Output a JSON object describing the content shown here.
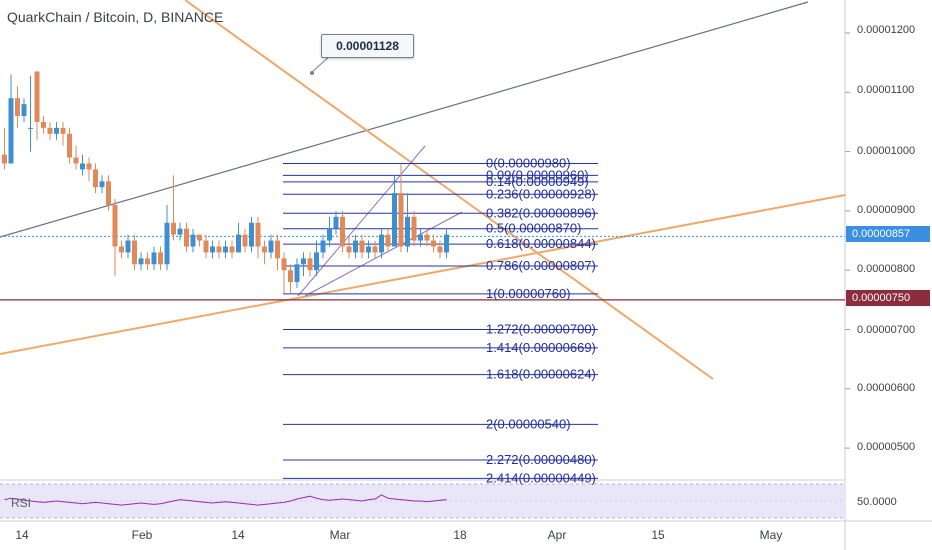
{
  "header": {
    "title": "QuarkChain / Bitcoin, D, BINANCE"
  },
  "callout": {
    "value": "0.00001128"
  },
  "rsi": {
    "label": "RSI",
    "value": "50.0000"
  },
  "colors": {
    "up": "#3c8fd1",
    "down": "#e08a5a",
    "trend": "#6a6f85",
    "orange": "#f0a868",
    "fib": "#2632a8",
    "current_price": "#3a8fe0",
    "support": "#8b2d3c",
    "rsi_line": "#9c27b0",
    "rsi_band": "#e9e6f8"
  },
  "chart_data": {
    "type": "candlestick",
    "title": "QuarkChain / Bitcoin, D, BINANCE",
    "x_ticks": [
      "14",
      "Feb",
      "14",
      "Mar",
      "18",
      "Apr",
      "15",
      "May"
    ],
    "y_ticks": [
      "0.00001200",
      "0.00001100",
      "0.00001000",
      "0.00000900",
      "0.00000800",
      "0.00000700",
      "0.00000600",
      "0.00000500"
    ],
    "current_price": "0.00000857",
    "support_price": "0.00000750",
    "fib_levels": [
      {
        "ratio": "0",
        "price": 9.8e-06,
        "label": "0(0.00000980)"
      },
      {
        "ratio": "0.09",
        "price": 9.6e-06,
        "label": "0.09(0.00000960)"
      },
      {
        "ratio": "0.14",
        "price": 9.49e-06,
        "label": "0.14(0.00000949)"
      },
      {
        "ratio": "0.236",
        "price": 9.28e-06,
        "label": "0.236(0.00000928)"
      },
      {
        "ratio": "0.382",
        "price": 8.96e-06,
        "label": "0.382(0.00000896)"
      },
      {
        "ratio": "0.5",
        "price": 8.7e-06,
        "label": "0.5(0.00000870)"
      },
      {
        "ratio": "0.618",
        "price": 8.44e-06,
        "label": "0.618(0.00000844)"
      },
      {
        "ratio": "0.786",
        "price": 8.07e-06,
        "label": "0.786(0.00000807)"
      },
      {
        "ratio": "1",
        "price": 7.6e-06,
        "label": "1(0.00000760)"
      },
      {
        "ratio": "1.272",
        "price": 7e-06,
        "label": "1.272(0.00000700)"
      },
      {
        "ratio": "1.414",
        "price": 6.69e-06,
        "label": "1.414(0.00000669)"
      },
      {
        "ratio": "1.618",
        "price": 6.24e-06,
        "label": "1.618(0.00000624)"
      },
      {
        "ratio": "2",
        "price": 5.4e-06,
        "label": "2(0.00000540)"
      },
      {
        "ratio": "2.272",
        "price": 4.8e-06,
        "label": "2.272(0.00000480)"
      },
      {
        "ratio": "2.414",
        "price": 4.49e-06,
        "label": "2.414(0.00000449)"
      }
    ],
    "candles": [
      [
        9.95e-06,
        9.8e-06,
        1.04e-05,
        9.7e-06
      ],
      [
        9.8e-06,
        1.09e-05,
        1.13e-05,
        9.8e-06
      ],
      [
        1.09e-05,
        1.06e-05,
        1.11e-05,
        1.04e-05
      ],
      [
        1.06e-05,
        1.08e-05,
        1.09e-05,
        1.05e-05
      ],
      [
        1.04e-05,
        1.04e-05,
        1.128e-05,
        1e-05
      ],
      [
        1.135e-05,
        1.05e-05,
        1.136e-05,
        1.02e-05
      ],
      [
        1.05e-05,
        1.04e-05,
        1.06e-05,
        1.03e-05
      ],
      [
        1.04e-05,
        1.03e-05,
        1.05e-05,
        1.02e-05
      ],
      [
        1.03e-05,
        1.04e-05,
        1.05e-05,
        1.02e-05
      ],
      [
        1.04e-05,
        1.03e-05,
        1.05e-05,
        1.01e-05
      ],
      [
        1.03e-05,
        9.9e-06,
        1.04e-05,
        9.8e-06
      ],
      [
        9.9e-06,
        9.8e-06,
        1.01e-05,
        9.7e-06
      ],
      [
        9.7e-06,
        9.8e-06,
        9.95e-06,
        9.6e-06
      ],
      [
        9.8e-06,
        9.7e-06,
        9.9e-06,
        9.5e-06
      ],
      [
        9.7e-06,
        9.4e-06,
        9.8e-06,
        9.3e-06
      ],
      [
        9.4e-06,
        9.5e-06,
        9.6e-06,
        9.3e-06
      ],
      [
        9.5e-06,
        9.1e-06,
        9.6e-06,
        9e-06
      ],
      [
        9.1e-06,
        8.4e-06,
        9.2e-06,
        7.9e-06
      ],
      [
        8.4e-06,
        8.3e-06,
        8.5e-06,
        8.2e-06
      ],
      [
        8.3e-06,
        8.5e-06,
        8.6e-06,
        8.2e-06
      ],
      [
        8.5e-06,
        8.1e-06,
        8.6e-06,
        8e-06
      ],
      [
        8.1e-06,
        8.2e-06,
        8.3e-06,
        8e-06
      ],
      [
        8.2e-06,
        8.1e-06,
        8.3e-06,
        8e-06
      ],
      [
        8.1e-06,
        8.3e-06,
        8.4e-06,
        8e-06
      ],
      [
        8.3e-06,
        8.1e-06,
        8.4e-06,
        8e-06
      ],
      [
        8.1e-06,
        8.8e-06,
        9.1e-06,
        8e-06
      ],
      [
        8.8e-06,
        8.6e-06,
        9.6e-06,
        8.5e-06
      ],
      [
        8.6e-06,
        8.7e-06,
        8.8e-06,
        8.5e-06
      ],
      [
        8.7e-06,
        8.4e-06,
        8.8e-06,
        8.3e-06
      ],
      [
        8.4e-06,
        8.6e-06,
        8.7e-06,
        8.3e-06
      ],
      [
        8.6e-06,
        8.5e-06,
        8.6e-06,
        8.4e-06
      ],
      [
        8.5e-06,
        8.3e-06,
        8.6e-06,
        8.2e-06
      ],
      [
        8.3e-06,
        8.4e-06,
        8.5e-06,
        8.2e-06
      ],
      [
        8.4e-06,
        8.3e-06,
        8.5e-06,
        8.2e-06
      ],
      [
        8.3e-06,
        8.4e-06,
        8.5e-06,
        8.2e-06
      ],
      [
        8.4e-06,
        8.3e-06,
        8.5e-06,
        8.2e-06
      ],
      [
        8.3e-06,
        8.6e-06,
        8.8e-06,
        8.3e-06
      ],
      [
        8.6e-06,
        8.4e-06,
        8.7e-06,
        8.3e-06
      ],
      [
        8.4e-06,
        8.8e-06,
        8.9e-06,
        8.3e-06
      ],
      [
        8.8e-06,
        8.4e-06,
        8.9e-06,
        8.2e-06
      ],
      [
        8.4e-06,
        8.3e-06,
        8.5e-06,
        8.1e-06
      ],
      [
        8.3e-06,
        8.5e-06,
        8.6e-06,
        8.2e-06
      ],
      [
        8.5e-06,
        8.2e-06,
        8.6e-06,
        8e-06
      ],
      [
        8.2e-06,
        8e-06,
        8.3e-06,
        7.6e-06
      ],
      [
        8e-06,
        7.8e-06,
        8.1e-06,
        7.6e-06
      ],
      [
        7.8e-06,
        8.1e-06,
        8.2e-06,
        7.7e-06
      ],
      [
        8.1e-06,
        8.2e-06,
        8.3e-06,
        7.9e-06
      ],
      [
        8.2e-06,
        8e-06,
        8.3e-06,
        7.9e-06
      ],
      [
        8e-06,
        8.3e-06,
        8.5e-06,
        7.9e-06
      ],
      [
        8.3e-06,
        8.5e-06,
        8.6e-06,
        8.2e-06
      ],
      [
        8.5e-06,
        8.7e-06,
        8.9e-06,
        8.4e-06
      ],
      [
        8.7e-06,
        8.9e-06,
        9e-06,
        8.6e-06
      ],
      [
        8.9e-06,
        8.4e-06,
        9e-06,
        8.3e-06
      ],
      [
        8.4e-06,
        8.3e-06,
        8.6e-06,
        8.2e-06
      ],
      [
        8.3e-06,
        8.5e-06,
        8.6e-06,
        8.2e-06
      ],
      [
        8.5e-06,
        8.3e-06,
        8.6e-06,
        8.2e-06
      ],
      [
        8.3e-06,
        8.4e-06,
        8.5e-06,
        8.2e-06
      ],
      [
        8.4e-06,
        8.3e-06,
        8.5e-06,
        8.2e-06
      ],
      [
        8.3e-06,
        8.6e-06,
        8.7e-06,
        8.2e-06
      ],
      [
        8.6e-06,
        8.4e-06,
        8.7e-06,
        8.3e-06
      ],
      [
        8.4e-06,
        9.3e-06,
        9.6e-06,
        8.4e-06
      ],
      [
        9.3e-06,
        8.4e-06,
        9.8e-06,
        8.3e-06
      ],
      [
        8.4e-06,
        8.9e-06,
        9.3e-06,
        8.3e-06
      ],
      [
        8.9e-06,
        8.5e-06,
        9e-06,
        8.4e-06
      ],
      [
        8.5e-06,
        8.6e-06,
        8.7e-06,
        8.4e-06
      ],
      [
        8.6e-06,
        8.5e-06,
        8.7e-06,
        8.4e-06
      ],
      [
        8.5e-06,
        8.4e-06,
        8.6e-06,
        8.3e-06
      ],
      [
        8.4e-06,
        8.3e-06,
        8.5e-06,
        8.2e-06
      ],
      [
        8.3e-06,
        8.6e-06,
        8.7e-06,
        8.2e-06
      ]
    ],
    "rsi_values": [
      52,
      54,
      53,
      51,
      50,
      49,
      48,
      49,
      50,
      49,
      48,
      47,
      46,
      47,
      48,
      47,
      46,
      45,
      44,
      45,
      46,
      47,
      46,
      45,
      46,
      48,
      50,
      52,
      51,
      50,
      49,
      48,
      47,
      48,
      49,
      48,
      47,
      46,
      45,
      44,
      45,
      46,
      47,
      48,
      50,
      53,
      55,
      57,
      54,
      52,
      51,
      52,
      53,
      52,
      51,
      50,
      52,
      53,
      59,
      54,
      53,
      52,
      51,
      50,
      50,
      49,
      50,
      51,
      52
    ],
    "rsi_reference": "50.0000"
  }
}
